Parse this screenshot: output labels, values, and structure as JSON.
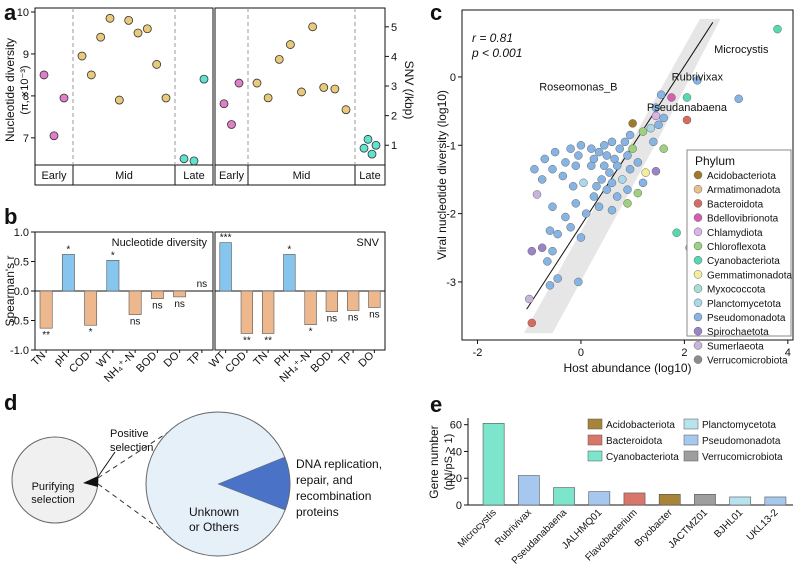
{
  "panels": {
    "a": "a",
    "b": "b",
    "c": "c",
    "d": "d",
    "e": "e"
  },
  "chart_data": [
    {
      "id": "a",
      "type": "scatter",
      "ylabel_left": "Nucleotide diversity",
      "ylabel_left_sub": "(π, ×10⁻³)",
      "ylabel_right": "SNV (/kbp)",
      "left_ticks": [
        7,
        8,
        9,
        10
      ],
      "right_ticks": [
        1,
        2,
        3,
        4,
        5
      ],
      "ylim_left": [
        6.4,
        10.0
      ],
      "ylim_right": [
        0.4,
        5.5
      ],
      "period_labels": [
        "Early",
        "Mid",
        "Late",
        "Early",
        "Mid",
        "Late"
      ],
      "colors": {
        "early": "#e07ec9",
        "mid": "#e9c97a",
        "late": "#5fe3cf"
      },
      "left_points": [
        {
          "g": "early",
          "i": 0,
          "v": 8.5
        },
        {
          "g": "early",
          "i": 1,
          "v": 7.05
        },
        {
          "g": "early",
          "i": 2,
          "v": 7.95
        },
        {
          "g": "mid",
          "i": 0,
          "v": 8.95
        },
        {
          "g": "mid",
          "i": 1,
          "v": 8.5
        },
        {
          "g": "mid",
          "i": 2,
          "v": 9.4
        },
        {
          "g": "mid",
          "i": 3,
          "v": 9.85
        },
        {
          "g": "mid",
          "i": 4,
          "v": 7.9
        },
        {
          "g": "mid",
          "i": 5,
          "v": 9.8
        },
        {
          "g": "mid",
          "i": 6,
          "v": 9.5
        },
        {
          "g": "mid",
          "i": 7,
          "v": 9.6
        },
        {
          "g": "mid",
          "i": 8,
          "v": 8.75
        },
        {
          "g": "mid",
          "i": 9,
          "v": 7.95
        },
        {
          "g": "late",
          "i": 0,
          "v": 6.5
        },
        {
          "g": "late",
          "i": 1,
          "v": 6.45
        },
        {
          "g": "late",
          "i": 2,
          "v": 8.4
        }
      ],
      "right_points": [
        {
          "g": "early",
          "i": 0,
          "v": 2.4
        },
        {
          "g": "early",
          "i": 1,
          "v": 1.7
        },
        {
          "g": "early",
          "i": 2,
          "v": 3.1
        },
        {
          "g": "mid",
          "i": 0,
          "v": 3.1
        },
        {
          "g": "mid",
          "i": 1,
          "v": 2.6
        },
        {
          "g": "mid",
          "i": 2,
          "v": 3.9
        },
        {
          "g": "mid",
          "i": 3,
          "v": 4.4
        },
        {
          "g": "mid",
          "i": 4,
          "v": 2.8
        },
        {
          "g": "mid",
          "i": 5,
          "v": 5.0
        },
        {
          "g": "mid",
          "i": 6,
          "v": 2.95
        },
        {
          "g": "mid",
          "i": 7,
          "v": 2.9
        },
        {
          "g": "mid",
          "i": 8,
          "v": 2.2
        },
        {
          "g": "late",
          "i": 0,
          "v": 0.9
        },
        {
          "g": "late",
          "i": 1,
          "v": 1.2
        },
        {
          "g": "late",
          "i": 2,
          "v": 0.7
        },
        {
          "g": "late",
          "i": 3,
          "v": 1.0
        }
      ]
    },
    {
      "id": "b",
      "type": "bar",
      "ylabel": "Spearman's r",
      "yticks": [
        -1.0,
        -0.5,
        0.0,
        0.5,
        1.0
      ],
      "ylim": [
        -1.0,
        1.0
      ],
      "pos_color": "#86c6ee",
      "neg_color": "#eeb88f",
      "groups": [
        {
          "title": "Nucleotide diversity",
          "categories": [
            "TN",
            "pH",
            "COD",
            "WT",
            "NH₄⁺-N",
            "BOD",
            "DO",
            "TP"
          ],
          "values": [
            -0.63,
            0.62,
            -0.58,
            0.52,
            -0.4,
            -0.13,
            -0.1,
            0.0
          ],
          "sig": [
            "**",
            "*",
            "*",
            "*",
            "ns",
            "ns",
            "ns",
            "ns"
          ]
        },
        {
          "title": "SNV",
          "categories": [
            "WT",
            "COD",
            "TN",
            "PH",
            "NH₄⁺-N",
            "BOD",
            "TP",
            "DO"
          ],
          "values": [
            0.82,
            -0.72,
            -0.72,
            0.62,
            -0.57,
            -0.35,
            -0.33,
            -0.28
          ],
          "sig": [
            "***",
            "**",
            "**",
            "*",
            "*",
            "ns",
            "ns",
            "ns"
          ]
        }
      ]
    },
    {
      "id": "c",
      "type": "scatter",
      "xlabel": "Host abundance (log10)",
      "ylabel": "Viral nucleotide diversity (log10)",
      "xticks": [
        -2,
        0,
        2,
        4
      ],
      "yticks": [
        -3,
        -2,
        -1,
        0
      ],
      "xlim": [
        -2.3,
        4.1
      ],
      "ylim": [
        -3.85,
        0.98
      ],
      "stats": {
        "r": "r  = 0.81",
        "p": "p < 0.001"
      },
      "annotations": [
        {
          "text": "Microcystis",
          "x": 3.1,
          "y": 0.35
        },
        {
          "text": "Rubrivixax",
          "x": 2.25,
          "y": -0.05
        },
        {
          "text": "Roseomonas_B",
          "x": -0.05,
          "y": -0.2
        },
        {
          "text": "Pseudanabaena",
          "x": 2.05,
          "y": -0.5
        }
      ],
      "legend_title": "Phylum",
      "phyla": [
        {
          "name": "Acidobacteriota",
          "color": "#a07a28"
        },
        {
          "name": "Armatimonadota",
          "color": "#e8c08a"
        },
        {
          "name": "Bacteroidota",
          "color": "#d86a5e"
        },
        {
          "name": "Bdellovibrionota",
          "color": "#d45fb0"
        },
        {
          "name": "Chlamydiota",
          "color": "#d9b3ec"
        },
        {
          "name": "Chloroflexota",
          "color": "#9ed07d"
        },
        {
          "name": "Cyanobacteriota",
          "color": "#56d9b1"
        },
        {
          "name": "Gemmatimonadota",
          "color": "#f2ee9a"
        },
        {
          "name": "Myxococcota",
          "color": "#a7ded3"
        },
        {
          "name": "Planctomycetota",
          "color": "#a9d8ea"
        },
        {
          "name": "Pseudomonadota",
          "color": "#86b5e5"
        },
        {
          "name": "Spirochaetota",
          "color": "#9a84c7"
        },
        {
          "name": "Sumerlaeota",
          "color": "#c9b4dc"
        },
        {
          "name": "Verrucomicrobiota",
          "color": "#8c8c8c"
        }
      ],
      "points": [
        [
          3.8,
          0.7,
          6
        ],
        [
          3.05,
          -0.32,
          10
        ],
        [
          2.25,
          -0.05,
          10
        ],
        [
          2.05,
          -0.3,
          6
        ],
        [
          2.05,
          -0.63,
          2
        ],
        [
          1.75,
          -0.3,
          3
        ],
        [
          1.55,
          -0.26,
          10
        ],
        [
          1.45,
          -0.45,
          10
        ],
        [
          1.6,
          -0.6,
          10
        ],
        [
          1.5,
          -0.7,
          10
        ],
        [
          1.35,
          -0.75,
          9
        ],
        [
          1.2,
          -0.8,
          5
        ],
        [
          1.4,
          -0.95,
          10
        ],
        [
          1.0,
          -0.68,
          0
        ],
        [
          0.95,
          -0.85,
          10
        ],
        [
          0.85,
          -0.95,
          10
        ],
        [
          0.75,
          -1.05,
          10
        ],
        [
          0.6,
          -0.95,
          10
        ],
        [
          0.45,
          -1.0,
          10
        ],
        [
          0.35,
          -1.1,
          10
        ],
        [
          0.2,
          -1.05,
          10
        ],
        [
          0.0,
          -1.0,
          10
        ],
        [
          -0.2,
          -1.05,
          10
        ],
        [
          0.5,
          -1.15,
          10
        ],
        [
          0.65,
          -1.2,
          10
        ],
        [
          0.9,
          -1.15,
          10
        ],
        [
          1.1,
          -1.25,
          10
        ],
        [
          1.45,
          -1.38,
          11
        ],
        [
          1.6,
          -1.05,
          5
        ],
        [
          1.25,
          -1.4,
          7
        ],
        [
          0.95,
          -1.35,
          10
        ],
        [
          0.8,
          -1.5,
          9
        ],
        [
          0.55,
          -1.4,
          10
        ],
        [
          0.4,
          -1.5,
          10
        ],
        [
          0.2,
          -1.3,
          10
        ],
        [
          0.05,
          -1.55,
          9
        ],
        [
          -0.15,
          -1.6,
          10
        ],
        [
          -0.35,
          -1.45,
          10
        ],
        [
          -0.55,
          -1.35,
          10
        ],
        [
          -0.75,
          -1.5,
          10
        ],
        [
          -0.9,
          -1.35,
          10
        ],
        [
          -0.7,
          -1.2,
          10
        ],
        [
          -0.5,
          -1.1,
          10
        ],
        [
          -0.3,
          -1.25,
          10
        ],
        [
          -0.1,
          -1.3,
          10
        ],
        [
          0.25,
          -1.75,
          10
        ],
        [
          0.5,
          -1.65,
          10
        ],
        [
          0.7,
          -1.75,
          10
        ],
        [
          0.9,
          -1.65,
          10
        ],
        [
          1.1,
          -1.7,
          5
        ],
        [
          0.9,
          -1.85,
          5
        ],
        [
          0.6,
          -1.95,
          10
        ],
        [
          0.35,
          -1.9,
          10
        ],
        [
          0.1,
          -2.0,
          10
        ],
        [
          -0.1,
          -1.85,
          10
        ],
        [
          -0.3,
          -2.05,
          10
        ],
        [
          -0.55,
          -1.9,
          10
        ],
        [
          -0.85,
          -1.72,
          12
        ],
        [
          -0.6,
          -2.25,
          10
        ],
        [
          -0.45,
          -2.3,
          10
        ],
        [
          -0.2,
          -2.2,
          10
        ],
        [
          0.0,
          -2.35,
          10
        ],
        [
          -0.55,
          -2.55,
          10
        ],
        [
          -0.75,
          -2.5,
          11
        ],
        [
          -0.95,
          -2.55,
          11
        ],
        [
          -0.65,
          -2.7,
          10
        ],
        [
          -0.45,
          -2.95,
          10
        ],
        [
          -0.6,
          -3.05,
          10
        ],
        [
          -0.05,
          -3.0,
          10
        ],
        [
          -1.0,
          -3.25,
          12
        ],
        [
          -0.95,
          -3.6,
          2
        ],
        [
          1.85,
          -2.28,
          6
        ],
        [
          1.45,
          -0.57,
          4
        ],
        [
          2.1,
          -2.5,
          10
        ],
        [
          0.25,
          -1.2,
          10
        ],
        [
          0.7,
          -1.3,
          10
        ],
        [
          1.0,
          -1.05,
          5
        ],
        [
          -0.05,
          -1.15,
          10
        ],
        [
          0.45,
          -1.3,
          10
        ],
        [
          1.2,
          -1.55,
          10
        ],
        [
          0.6,
          -1.55,
          10
        ],
        [
          0.3,
          -1.6,
          10
        ]
      ]
    },
    {
      "id": "d",
      "type": "pie",
      "labels": {
        "positive": "Positive selection",
        "purifying": "Purifying selection",
        "unknown": "Unknown or Others",
        "dna": "DNA replication, repair, and recombination proteins"
      },
      "small_pie": [
        {
          "name": "Purifying selection",
          "share": 0.985,
          "color": "#f0f0f0"
        },
        {
          "name": "Positive selection",
          "share": 0.015,
          "color": "#111111"
        }
      ],
      "large_pie": [
        {
          "name": "Unknown or Others",
          "share": 0.88,
          "color": "#e6f0f9"
        },
        {
          "name": "DNA replication, repair, and recombination proteins",
          "share": 0.12,
          "color": "#4a72c6"
        }
      ]
    },
    {
      "id": "e",
      "type": "bar",
      "ylabel": "Gene number",
      "ylabel_sub": "(pN/pS > 1)",
      "yticks": [
        0,
        20,
        40,
        60
      ],
      "ylim": [
        0,
        65
      ],
      "categories": [
        "Microcystis",
        "Rubrivivax",
        "Pseudanabaena",
        "JALHMQ01",
        "Flavobacterium",
        "Bryobacter",
        "JACTMZ01",
        "BJHL01",
        "UKL13-2"
      ],
      "values": [
        61,
        22,
        13,
        10,
        9,
        8,
        8,
        6,
        6
      ],
      "bar_phyla": [
        "Cyanobacteriota",
        "Pseudomonadota",
        "Cyanobacteriota",
        "Pseudomonadota",
        "Bacteroidota",
        "Acidobacteriota",
        "Verrucomicrobiota",
        "Planctomycetota",
        "Pseudomonadota"
      ],
      "legend": [
        {
          "name": "Acidobacteriota",
          "color": "#a8843a"
        },
        {
          "name": "Bacteroidota",
          "color": "#d8766a"
        },
        {
          "name": "Cyanobacteriota",
          "color": "#7ee5cd"
        },
        {
          "name": "Planctomycetota",
          "color": "#b8e2ee"
        },
        {
          "name": "Pseudomonadota",
          "color": "#a6c8ee"
        },
        {
          "name": "Verrucomicrobiota",
          "color": "#9e9e9e"
        }
      ]
    }
  ]
}
